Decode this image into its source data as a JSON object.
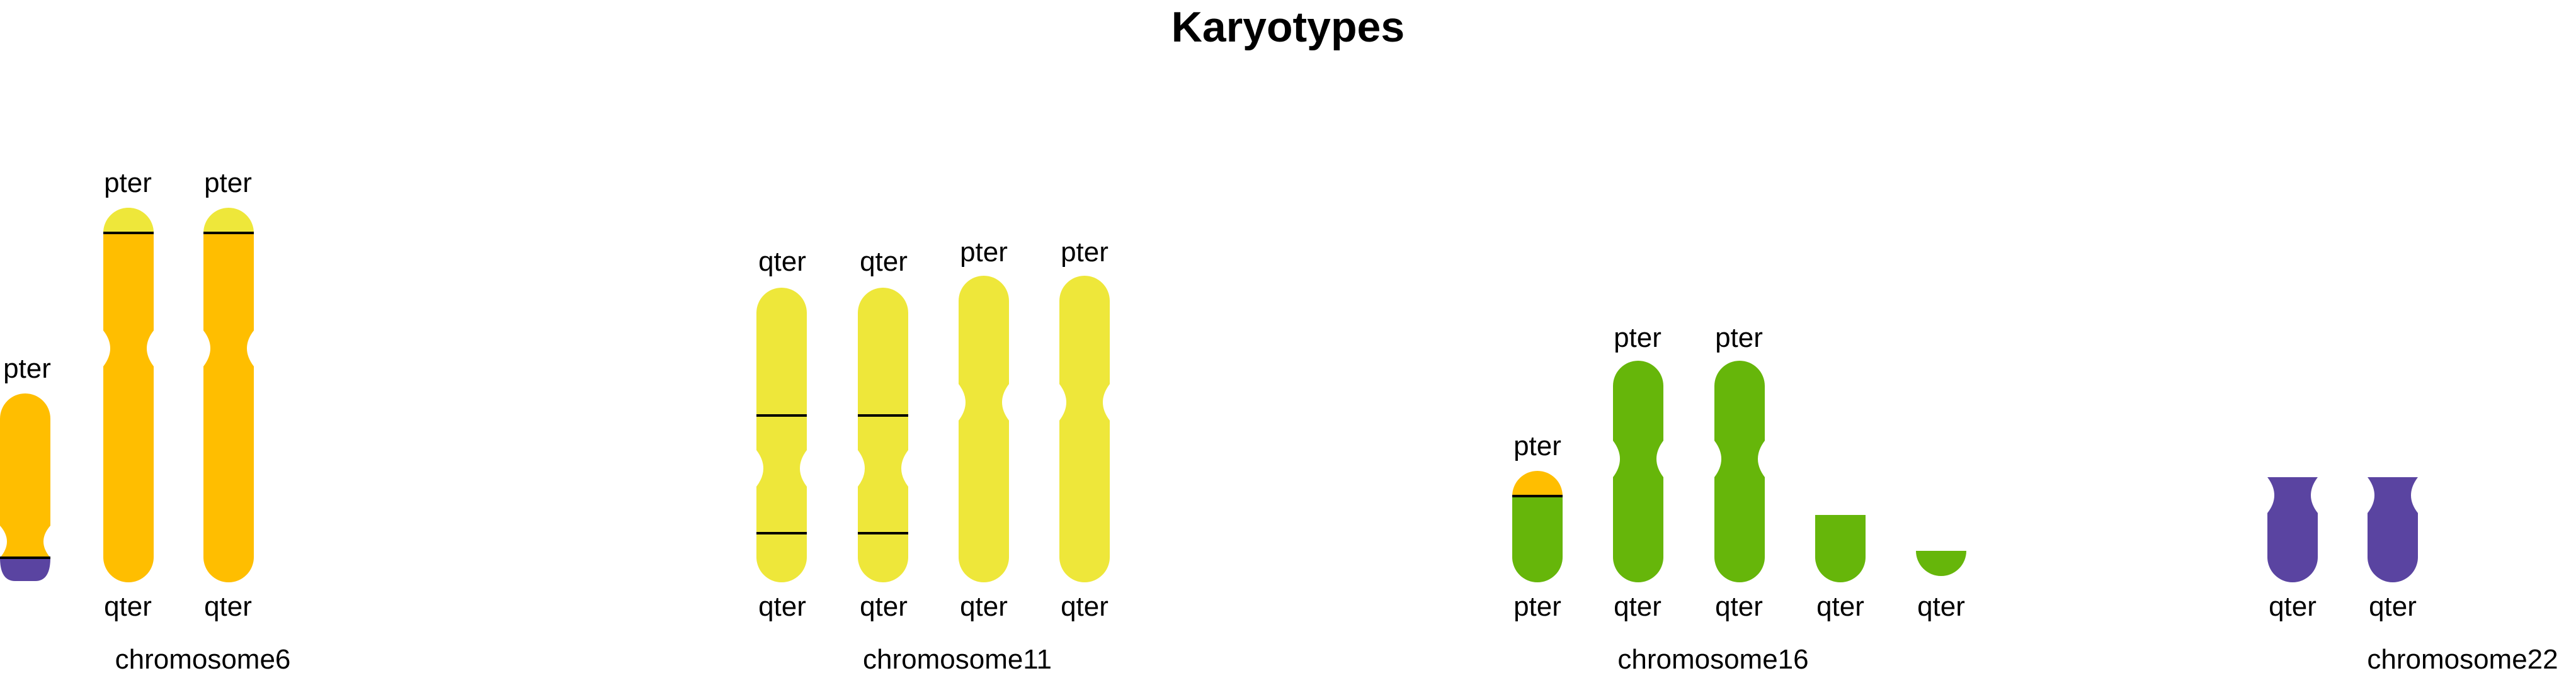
{
  "title": "Karyotypes",
  "colors": {
    "chr6": "#FFBE00",
    "chr11": "#EEE73A",
    "chr16": "#66B60A",
    "chr22": "#5A44A1",
    "breakpoint": "#000000"
  },
  "groups": [
    {
      "label": "chromosome6",
      "chromosomes": [
        {
          "top_label": "pter",
          "bottom_label": "",
          "segments": [
            {
              "color": "chr6",
              "shape": "rounded-top",
              "centromere": true
            },
            {
              "color": "chr22",
              "shape": "half-disc-bottom"
            }
          ],
          "breakpoints": 1
        },
        {
          "top_label": "pter",
          "bottom_label": "qter",
          "segments": [
            {
              "color": "chr11",
              "shape": "cap"
            },
            {
              "color": "chr6",
              "shape": "chromosome",
              "centromere": true
            }
          ],
          "breakpoints": 1
        },
        {
          "top_label": "pter",
          "bottom_label": "qter",
          "segments": [
            {
              "color": "chr11",
              "shape": "cap"
            },
            {
              "color": "chr6",
              "shape": "chromosome",
              "centromere": true
            }
          ],
          "breakpoints": 1
        }
      ]
    },
    {
      "label": "chromosome11",
      "chromosomes": [
        {
          "top_label": "qter",
          "bottom_label": "qter",
          "segments": [
            {
              "color": "chr11",
              "shape": "chromosome",
              "centromere": true
            }
          ],
          "breakpoints": 2
        },
        {
          "top_label": "qter",
          "bottom_label": "qter",
          "segments": [
            {
              "color": "chr11",
              "shape": "chromosome",
              "centromere": true
            }
          ],
          "breakpoints": 2
        },
        {
          "top_label": "pter",
          "bottom_label": "qter",
          "segments": [
            {
              "color": "chr11",
              "shape": "chromosome",
              "centromere": true
            }
          ],
          "breakpoints": 0
        },
        {
          "top_label": "pter",
          "bottom_label": "qter",
          "segments": [
            {
              "color": "chr11",
              "shape": "chromosome",
              "centromere": true
            }
          ],
          "breakpoints": 0
        }
      ]
    },
    {
      "label": "chromosome16",
      "chromosomes": [
        {
          "top_label": "pter",
          "bottom_label": "pter",
          "segments": [
            {
              "color": "chr6",
              "shape": "cap"
            },
            {
              "color": "chr16",
              "shape": "square-top"
            }
          ],
          "breakpoints": 1
        },
        {
          "top_label": "pter",
          "bottom_label": "qter",
          "segments": [
            {
              "color": "chr16",
              "shape": "chromosome",
              "centromere": true
            }
          ],
          "breakpoints": 0
        },
        {
          "top_label": "pter",
          "bottom_label": "qter",
          "segments": [
            {
              "color": "chr16",
              "shape": "chromosome",
              "centromere": true
            }
          ],
          "breakpoints": 0
        },
        {
          "top_label": "",
          "bottom_label": "qter",
          "segments": [
            {
              "color": "chr16",
              "shape": "square-top"
            }
          ],
          "breakpoints": 0
        },
        {
          "top_label": "",
          "bottom_label": "qter",
          "segments": [
            {
              "color": "chr16",
              "shape": "square-top"
            }
          ],
          "breakpoints": 0
        }
      ]
    },
    {
      "label": "chromosome22",
      "chromosomes": [
        {
          "top_label": "",
          "bottom_label": "qter",
          "segments": [
            {
              "color": "chr22",
              "shape": "notched-top"
            }
          ],
          "breakpoints": 0
        },
        {
          "top_label": "",
          "bottom_label": "qter",
          "segments": [
            {
              "color": "chr22",
              "shape": "notched-top"
            }
          ],
          "breakpoints": 0
        }
      ]
    }
  ]
}
